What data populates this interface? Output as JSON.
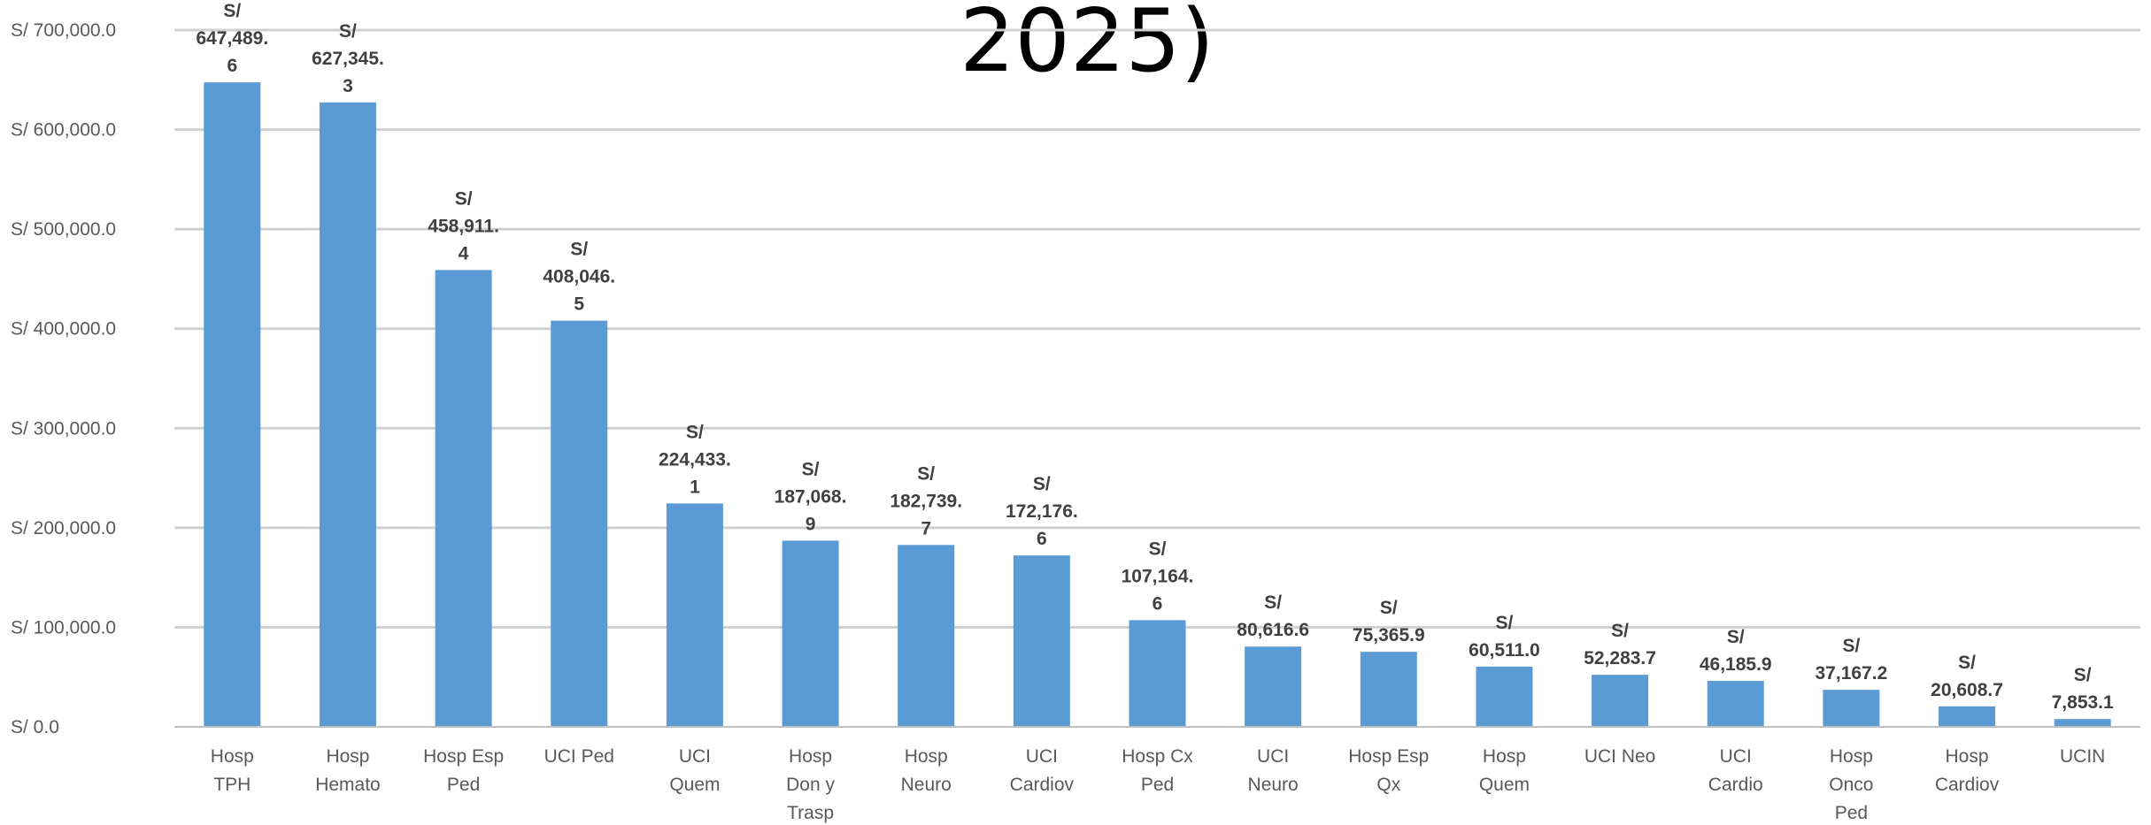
{
  "chart_data": {
    "type": "bar",
    "title": "2025)",
    "xlabel": "",
    "ylabel": "",
    "ylim": [
      0,
      700000
    ],
    "grid": true,
    "legend": "none",
    "bar_color": "#5B9BD5",
    "y_ticks": [
      "S/ 0.0",
      "S/ 100,000.0",
      "S/ 200,000.0",
      "S/ 300,000.0",
      "S/ 400,000.0",
      "S/ 500,000.0",
      "S/ 600,000.0",
      "S/ 700,000.0"
    ],
    "y_tick_values": [
      0,
      100000,
      200000,
      300000,
      400000,
      500000,
      600000,
      700000
    ],
    "categories": [
      [
        "Hosp",
        "TPH"
      ],
      [
        "Hosp",
        "Hemato"
      ],
      [
        "Hosp Esp",
        "Ped"
      ],
      [
        "UCI Ped"
      ],
      [
        "UCI",
        "Quem"
      ],
      [
        "Hosp",
        "Don y",
        "Trasp"
      ],
      [
        "Hosp",
        "Neuro"
      ],
      [
        "UCI",
        "Cardiov"
      ],
      [
        "Hosp Cx",
        "Ped"
      ],
      [
        "UCI",
        "Neuro"
      ],
      [
        "Hosp Esp",
        "Qx"
      ],
      [
        "Hosp",
        "Quem"
      ],
      [
        "UCI Neo"
      ],
      [
        "UCI",
        "Cardio"
      ],
      [
        "Hosp",
        "Onco",
        "Ped"
      ],
      [
        "Hosp",
        "Cardiov"
      ],
      [
        "UCIN"
      ]
    ],
    "values": [
      647489.6,
      627345.3,
      458911.4,
      408046.5,
      224433.1,
      187068.9,
      182739.7,
      172176.6,
      107164.6,
      80616.6,
      75365.9,
      60511.0,
      52283.7,
      46185.9,
      37167.2,
      20608.7,
      7853.1
    ],
    "data_labels": [
      [
        "S/",
        "647,489.",
        "6"
      ],
      [
        "S/",
        "627,345.",
        "3"
      ],
      [
        "S/",
        "458,911.",
        "4"
      ],
      [
        "S/",
        "408,046.",
        "5"
      ],
      [
        "S/",
        "224,433.",
        "1"
      ],
      [
        "S/",
        "187,068.",
        "9"
      ],
      [
        "S/",
        "182,739.",
        "7"
      ],
      [
        "S/",
        "172,176.",
        "6"
      ],
      [
        "S/",
        "107,164.",
        "6"
      ],
      [
        "S/",
        "80,616.6"
      ],
      [
        "S/",
        "75,365.9"
      ],
      [
        "S/",
        "60,511.0"
      ],
      [
        "S/",
        "52,283.7"
      ],
      [
        "S/",
        "46,185.9"
      ],
      [
        "S/",
        "37,167.2"
      ],
      [
        "S/",
        "20,608.7"
      ],
      [
        "S/",
        "7,853.1"
      ]
    ]
  }
}
